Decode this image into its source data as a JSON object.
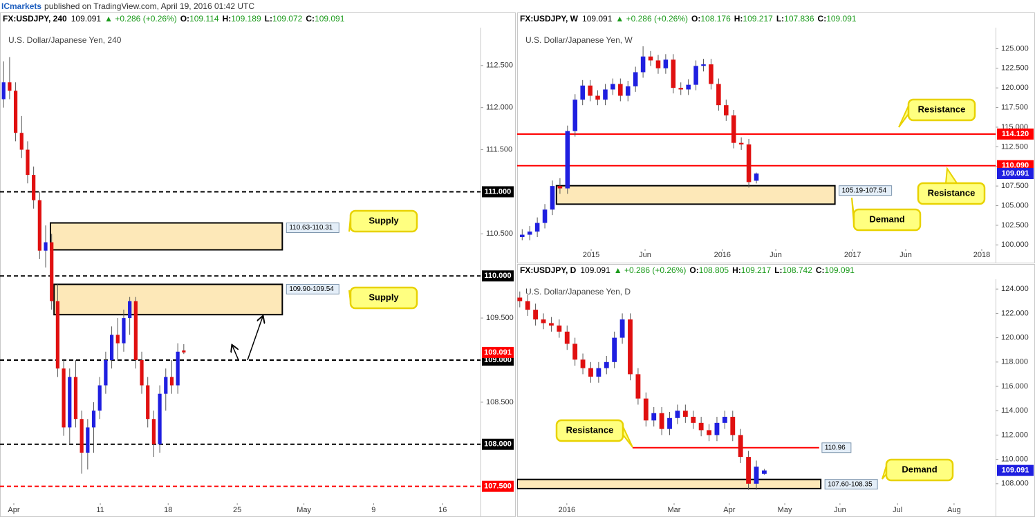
{
  "header": {
    "author": "ICmarkets",
    "text": "published on TradingView.com, April 19, 2016 01:42 UTC"
  },
  "chart_data": [
    {
      "type": "candlestick",
      "symbol": "FX:USDJPY, 240",
      "last": "109.091",
      "change": "▲ +0.286 (+0.26%)",
      "ohlc": [
        {
          "label": "O:",
          "value": "109.114"
        },
        {
          "label": "H:",
          "value": "109.189"
        },
        {
          "label": "L:",
          "value": "109.072"
        },
        {
          "label": "C:",
          "value": "109.091"
        }
      ],
      "title": "U.S. Dollar/Japanese Yen, 240",
      "up_color": "#1f1fe0",
      "down_color": "#e01010",
      "x": [
        0,
        1,
        2,
        3,
        4,
        5,
        6,
        7,
        8,
        9,
        10,
        11,
        12,
        13,
        14,
        15,
        16,
        17,
        18,
        19,
        20,
        21,
        22,
        23,
        24,
        25,
        26,
        27,
        28,
        29,
        30
      ],
      "open": [
        112.1,
        112.3,
        112.2,
        111.7,
        111.5,
        111.2,
        110.9,
        110.3,
        110.4,
        109.7,
        108.9,
        108.2,
        108.8,
        108.3,
        107.9,
        108.2,
        108.4,
        108.7,
        109.0,
        109.3,
        109.2,
        109.5,
        109.7,
        109.0,
        108.7,
        108.3,
        108.0,
        108.6,
        108.8,
        108.7,
        109.114
      ],
      "high": [
        112.55,
        112.6,
        112.3,
        111.9,
        111.6,
        111.3,
        111.0,
        110.6,
        110.5,
        109.9,
        109.0,
        108.9,
        109.0,
        108.4,
        108.3,
        108.5,
        108.8,
        109.1,
        109.4,
        109.5,
        109.6,
        109.75,
        109.75,
        109.1,
        108.8,
        108.4,
        108.7,
        108.9,
        109.0,
        109.2,
        109.189
      ],
      "low": [
        112.0,
        112.1,
        111.6,
        111.4,
        111.1,
        110.8,
        110.2,
        110.1,
        109.6,
        108.8,
        108.1,
        108.0,
        108.2,
        107.65,
        107.7,
        107.9,
        108.3,
        108.6,
        108.9,
        109.0,
        109.1,
        109.3,
        108.9,
        108.6,
        108.2,
        107.85,
        107.9,
        108.4,
        108.6,
        108.6,
        109.072
      ],
      "close": [
        112.3,
        112.2,
        111.7,
        111.5,
        111.2,
        110.9,
        110.3,
        110.4,
        109.7,
        108.9,
        108.2,
        108.8,
        108.3,
        107.9,
        108.2,
        108.4,
        108.7,
        109.0,
        109.3,
        109.2,
        109.5,
        109.7,
        109.0,
        108.7,
        108.3,
        108.0,
        108.6,
        108.8,
        108.7,
        109.1,
        109.091
      ],
      "xlim": [
        -0.6,
        79.4
      ],
      "xticks": [
        {
          "value": 1.7,
          "label": "Apr"
        },
        {
          "value": 16.1,
          "label": "11"
        },
        {
          "value": 27.4,
          "label": "18"
        },
        {
          "value": 38.9,
          "label": "25"
        },
        {
          "value": 50.0,
          "label": "May"
        },
        {
          "value": 61.6,
          "label": "9"
        },
        {
          "value": 73.1,
          "label": "16"
        }
      ],
      "ylim": [
        107.3,
        112.95
      ],
      "yticks": [
        {
          "value": 108.5,
          "label": "108.500"
        },
        {
          "value": 109.5,
          "label": "109.500"
        },
        {
          "value": 110.5,
          "label": "110.500"
        },
        {
          "value": 111.5,
          "label": "111.500"
        },
        {
          "value": 112,
          "label": "112.000"
        },
        {
          "value": 112.5,
          "label": "112.500"
        }
      ],
      "levels": [
        {
          "value": 111,
          "label": "111.000",
          "color": "#000000",
          "style": "dashed",
          "label_at": "axis"
        },
        {
          "value": 110,
          "label": "110.000",
          "color": "#000000",
          "style": "dashed",
          "label_at": "axis"
        },
        {
          "value": 109,
          "label": "109.000",
          "color": "#000000",
          "style": "dashed",
          "label_at": "axis"
        },
        {
          "value": 108,
          "label": "108.000",
          "color": "#000000",
          "style": "dashed",
          "label_at": "axis"
        },
        {
          "value": 107.5,
          "label": "107.500",
          "color": "#ff0000",
          "style": "dashed",
          "label_at": "axis"
        }
      ],
      "zones": [
        {
          "low": 110.31,
          "high": 110.63,
          "from": 7.8,
          "to": 46.4,
          "label": "110.63-110.31"
        },
        {
          "low": 109.54,
          "high": 109.9,
          "from": 8.4,
          "to": 46.4,
          "label": "109.90-109.54"
        }
      ],
      "callouts": [
        "Supply",
        "Supply"
      ],
      "last_price": {
        "value": 109.091,
        "color": "#ff0000"
      }
    },
    {
      "type": "candlestick",
      "symbol": "FX:USDJPY, W",
      "last": "109.091",
      "change": "▲ +0.286 (+0.26%)",
      "ohlc": [
        {
          "label": "O:",
          "value": "108.176"
        },
        {
          "label": "H:",
          "value": "109.217"
        },
        {
          "label": "L:",
          "value": "107.836"
        },
        {
          "label": "C:",
          "value": "109.091"
        }
      ],
      "title": "U.S. Dollar/Japanese Yen, W",
      "up_color": "#1f1fe0",
      "down_color": "#e01010",
      "x": [
        2,
        5,
        8,
        11,
        14,
        17,
        20,
        23,
        26,
        29,
        32,
        35,
        38,
        41,
        44,
        47,
        50,
        53,
        56,
        59,
        62,
        65,
        68,
        71,
        74,
        77,
        80,
        83,
        86,
        89,
        92,
        95
      ],
      "open": [
        101.0,
        101.3,
        101.7,
        102.8,
        104.5,
        107.5,
        107.2,
        114.5,
        118.5,
        120.3,
        119.0,
        118.5,
        119.8,
        120.5,
        119.0,
        120.2,
        122.0,
        124.0,
        123.5,
        122.5,
        123.6,
        120.0,
        119.8,
        120.4,
        122.8,
        123.0,
        120.5,
        117.8,
        116.5,
        113.0,
        112.8,
        108.176
      ],
      "high": [
        102.0,
        102.4,
        103.5,
        105.2,
        108.2,
        108.5,
        115.2,
        119.2,
        121.0,
        121.0,
        119.7,
        120.5,
        121.2,
        121.2,
        120.9,
        122.7,
        125.3,
        124.7,
        124.2,
        124.3,
        124.3,
        120.7,
        121.1,
        123.5,
        123.7,
        123.7,
        121.2,
        118.5,
        117.2,
        113.7,
        113.5,
        109.217
      ],
      "low": [
        100.6,
        100.6,
        101.0,
        102.1,
        103.8,
        106.5,
        106.5,
        113.8,
        117.8,
        118.3,
        117.8,
        117.8,
        119.1,
        118.3,
        118.3,
        119.5,
        121.3,
        122.8,
        121.8,
        121.8,
        119.3,
        119.1,
        119.1,
        119.7,
        122.1,
        119.8,
        117.1,
        115.8,
        112.3,
        112.1,
        107.3,
        107.836
      ],
      "close": [
        101.3,
        101.7,
        102.8,
        104.5,
        107.5,
        107.2,
        114.5,
        118.5,
        120.3,
        119.0,
        118.5,
        119.8,
        120.5,
        119.0,
        120.2,
        122.0,
        124.0,
        123.5,
        122.5,
        123.6,
        120.0,
        119.8,
        120.4,
        122.8,
        123.0,
        120.5,
        117.8,
        116.5,
        113.0,
        112.8,
        108.0,
        109.091
      ],
      "xlim": [
        0,
        190
      ],
      "xticks": [
        {
          "value": 29.4,
          "label": "2015"
        },
        {
          "value": 50.8,
          "label": "Jun"
        },
        {
          "value": 81.5,
          "label": "2016"
        },
        {
          "value": 102.7,
          "label": "Jun"
        },
        {
          "value": 133.2,
          "label": "2017"
        },
        {
          "value": 154.3,
          "label": "Jun"
        },
        {
          "value": 184.5,
          "label": "2018"
        }
      ],
      "ylim": [
        99.5,
        127.5
      ],
      "yticks": [
        {
          "value": 100,
          "label": "100.000"
        },
        {
          "value": 102.5,
          "label": "102.500"
        },
        {
          "value": 105,
          "label": "105.000"
        },
        {
          "value": 107.5,
          "label": "107.500"
        },
        {
          "value": 110,
          "label": "110.000"
        },
        {
          "value": 112.5,
          "label": "112.500"
        },
        {
          "value": 115,
          "label": "115.000"
        },
        {
          "value": 117.5,
          "label": "117.500"
        },
        {
          "value": 120,
          "label": "120.000"
        },
        {
          "value": 122.5,
          "label": "122.500"
        },
        {
          "value": 125,
          "label": "125.000"
        }
      ],
      "levels": [
        {
          "value": 114.12,
          "label": "114.120",
          "color": "#ff0000",
          "style": "solid",
          "label_at": "axis"
        },
        {
          "value": 110.09,
          "label": "110.090",
          "color": "#ff0000",
          "style": "solid",
          "label_at": "axis"
        }
      ],
      "zones": [
        {
          "low": 105.19,
          "high": 107.54,
          "from": 15.6,
          "to": 126.2,
          "label": "105.19-107.54"
        }
      ],
      "callouts": [
        "Resistance",
        "Resistance",
        "Demand"
      ],
      "last_price": {
        "value": 109.091,
        "color": "#1f1fe0"
      }
    },
    {
      "type": "candlestick",
      "symbol": "FX:USDJPY, D",
      "last": "109.091",
      "change": "▲ +0.286 (+0.26%)",
      "ohlc": [
        {
          "label": "O:",
          "value": "108.805"
        },
        {
          "label": "H:",
          "value": "109.217"
        },
        {
          "label": "L:",
          "value": "108.742"
        },
        {
          "label": "C:",
          "value": "109.091"
        }
      ],
      "title": "U.S. Dollar/Japanese Yen, D",
      "up_color": "#1f1fe0",
      "down_color": "#e01010",
      "x": [
        0,
        3,
        6,
        9,
        12,
        15,
        18,
        21,
        24,
        27,
        30,
        33,
        36,
        39,
        42,
        45,
        48,
        51,
        54,
        57,
        60,
        63,
        66,
        69,
        72,
        75,
        78,
        81,
        84,
        87,
        90,
        93
      ],
      "open": [
        123.3,
        123.0,
        122.3,
        121.5,
        121.2,
        121.0,
        120.5,
        119.5,
        118.2,
        117.5,
        116.8,
        117.5,
        118.0,
        120.0,
        121.5,
        117.0,
        115.0,
        113.2,
        113.8,
        112.5,
        113.4,
        114.0,
        113.5,
        113.0,
        112.4,
        112.0,
        113.0,
        113.5,
        112.0,
        110.2,
        108.0,
        108.805
      ],
      "high": [
        123.8,
        123.5,
        122.8,
        122.0,
        121.7,
        121.5,
        121.0,
        120.0,
        118.7,
        118.0,
        118.0,
        118.5,
        120.5,
        122.0,
        122.0,
        117.5,
        115.5,
        114.3,
        114.3,
        113.9,
        114.5,
        114.5,
        114.0,
        113.5,
        112.9,
        113.5,
        114.0,
        114.0,
        112.5,
        110.7,
        109.9,
        109.217
      ],
      "low": [
        122.5,
        121.8,
        121.0,
        120.7,
        120.5,
        120.0,
        119.0,
        117.7,
        117.0,
        116.3,
        116.3,
        117.0,
        117.5,
        119.5,
        116.5,
        114.5,
        112.7,
        112.7,
        112.0,
        112.0,
        112.9,
        113.0,
        112.5,
        111.9,
        111.5,
        111.5,
        112.5,
        111.5,
        109.7,
        107.5,
        107.5,
        108.742
      ],
      "close": [
        123.0,
        122.3,
        121.5,
        121.2,
        121.0,
        120.5,
        119.5,
        118.2,
        117.5,
        116.8,
        117.5,
        118.0,
        120.0,
        121.5,
        117.0,
        115.0,
        113.2,
        113.8,
        112.5,
        113.4,
        114.0,
        113.5,
        113.0,
        112.4,
        112.0,
        113.0,
        113.5,
        112.0,
        110.2,
        108.0,
        109.4,
        109.091
      ],
      "xlim": [
        -1,
        181
      ],
      "xticks": [
        {
          "value": 17.9,
          "label": "2016"
        },
        {
          "value": 58.7,
          "label": "Mar"
        },
        {
          "value": 79.7,
          "label": "Apr"
        },
        {
          "value": 100.8,
          "label": "May"
        },
        {
          "value": 121.8,
          "label": "Jun"
        },
        {
          "value": 143.7,
          "label": "Jul"
        },
        {
          "value": 165.2,
          "label": "Aug"
        }
      ],
      "ylim": [
        106.4,
        124.75
      ],
      "yticks": [
        {
          "value": 108,
          "label": "108.000"
        },
        {
          "value": 110,
          "label": "110.000"
        },
        {
          "value": 112,
          "label": "112.000"
        },
        {
          "value": 114,
          "label": "114.000"
        },
        {
          "value": 116,
          "label": "116.000"
        },
        {
          "value": 118,
          "label": "118.000"
        },
        {
          "value": 120,
          "label": "120.000"
        },
        {
          "value": 122,
          "label": "122.000"
        },
        {
          "value": 124,
          "label": "124.000"
        }
      ],
      "levels": [
        {
          "value": 110.96,
          "label": "110.96",
          "color": "#ff0000",
          "style": "solid",
          "label_at": "line",
          "from": 42.9,
          "to": 113.9
        }
      ],
      "zones": [
        {
          "low": 107.6,
          "high": 108.35,
          "from": -1,
          "to": 114.5,
          "label": "107.60-108.35"
        }
      ],
      "callouts": [
        "Resistance",
        "Demand"
      ],
      "last_price": {
        "value": 109.091,
        "color": "#1f1fe0"
      }
    }
  ]
}
